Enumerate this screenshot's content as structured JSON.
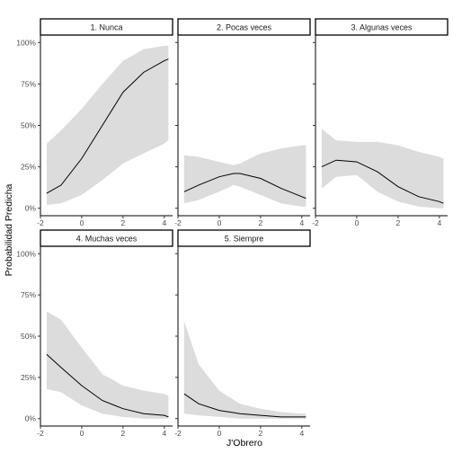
{
  "chart_data": {
    "type": "line",
    "xlabel": "J'Obrero",
    "ylabel": "Probabilidad Predicha",
    "xlim": [
      -2,
      4.4
    ],
    "ylim": [
      0,
      1
    ],
    "x_ticks": [
      -2,
      0,
      2,
      4
    ],
    "x_tick_labels": [
      "-2",
      "0",
      "2",
      "4"
    ],
    "y_ticks": [
      0,
      0.25,
      0.5,
      0.75,
      1
    ],
    "y_tick_labels": [
      "0%",
      "25%",
      "50%",
      "75%",
      "100%"
    ],
    "band_color": "#dcdcdc",
    "line_color": "#000000",
    "facets": [
      {
        "label": "1. Nunca",
        "x": [
          -1.7,
          -1,
          0,
          1,
          2,
          3,
          4,
          4.2
        ],
        "y": [
          0.09,
          0.14,
          0.3,
          0.5,
          0.7,
          0.82,
          0.89,
          0.9
        ],
        "lower": [
          0.02,
          0.03,
          0.08,
          0.17,
          0.27,
          0.33,
          0.39,
          0.41
        ],
        "upper": [
          0.39,
          0.47,
          0.6,
          0.75,
          0.89,
          0.96,
          0.98,
          0.98
        ]
      },
      {
        "label": "2. Pocas veces",
        "x": [
          -1.7,
          -1,
          0,
          0.7,
          1,
          2,
          3,
          4,
          4.2
        ],
        "y": [
          0.1,
          0.14,
          0.19,
          0.21,
          0.21,
          0.18,
          0.12,
          0.07,
          0.06
        ],
        "lower": [
          0.03,
          0.05,
          0.1,
          0.14,
          0.13,
          0.08,
          0.03,
          0.01,
          0.01
        ],
        "upper": [
          0.32,
          0.31,
          0.28,
          0.26,
          0.27,
          0.33,
          0.36,
          0.38,
          0.38
        ]
      },
      {
        "label": "3. Algunas veces",
        "x": [
          -1.7,
          -1,
          0,
          1,
          2,
          3,
          4,
          4.2
        ],
        "y": [
          0.25,
          0.29,
          0.28,
          0.22,
          0.13,
          0.07,
          0.04,
          0.03
        ],
        "lower": [
          0.12,
          0.19,
          0.2,
          0.1,
          0.04,
          0.01,
          0.0,
          0.0
        ],
        "upper": [
          0.48,
          0.41,
          0.4,
          0.4,
          0.38,
          0.34,
          0.31,
          0.3
        ]
      },
      {
        "label": "4. Muchas veces",
        "x": [
          -1.7,
          -1,
          0,
          1,
          2,
          3,
          4,
          4.2
        ],
        "y": [
          0.39,
          0.31,
          0.2,
          0.11,
          0.06,
          0.03,
          0.02,
          0.01
        ],
        "lower": [
          0.18,
          0.16,
          0.08,
          0.03,
          0.01,
          0.0,
          0.0,
          0.0
        ],
        "upper": [
          0.65,
          0.6,
          0.43,
          0.27,
          0.2,
          0.17,
          0.15,
          0.14
        ]
      },
      {
        "label": "5. Siempre",
        "x": [
          -1.7,
          -1,
          0,
          1,
          2,
          3,
          4,
          4.2
        ],
        "y": [
          0.15,
          0.09,
          0.05,
          0.03,
          0.02,
          0.01,
          0.01,
          0.01
        ],
        "lower": [
          0.03,
          0.02,
          0.01,
          0.0,
          0.0,
          0.0,
          0.0,
          0.0
        ],
        "upper": [
          0.59,
          0.33,
          0.17,
          0.09,
          0.06,
          0.04,
          0.03,
          0.03
        ]
      }
    ]
  }
}
